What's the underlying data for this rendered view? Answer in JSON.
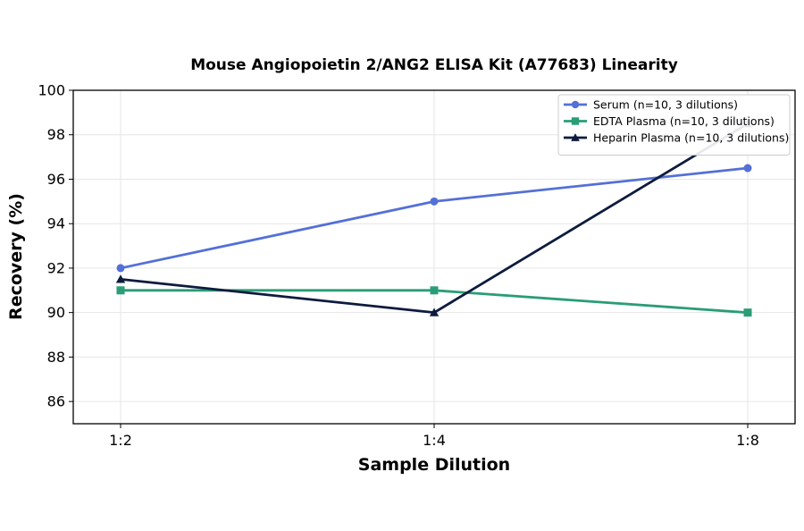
{
  "chart_data": {
    "type": "line",
    "title": "Mouse Angiopoietin 2/ANG2 ELISA Kit (A77683) Linearity",
    "xlabel": "Sample Dilution",
    "ylabel": "Recovery (%)",
    "categories": [
      "1:2",
      "1:4",
      "1:8"
    ],
    "ylim": [
      85,
      100
    ],
    "yticks": [
      86,
      88,
      90,
      92,
      94,
      96,
      98,
      100
    ],
    "grid": true,
    "legend_position": "top-right",
    "series": [
      {
        "name": "Serum (n=10, 3 dilutions)",
        "values": [
          92,
          95,
          96.5
        ],
        "color": "#5470d6",
        "marker": "circle"
      },
      {
        "name": "EDTA Plasma (n=10, 3 dilutions)",
        "values": [
          91,
          91,
          90
        ],
        "color": "#2a9d75",
        "marker": "square"
      },
      {
        "name": "Heparin Plasma (n=10, 3 dilutions)",
        "values": [
          91.5,
          90,
          98.5
        ],
        "color": "#0d1b3e",
        "marker": "triangle"
      }
    ]
  }
}
